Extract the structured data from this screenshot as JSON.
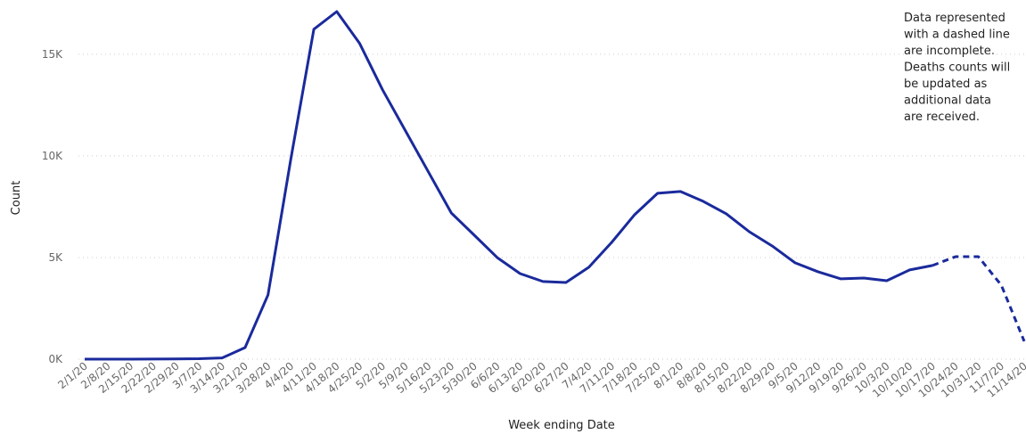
{
  "chart_data": {
    "type": "line",
    "x_label": "Week ending Date",
    "y_label": "Count",
    "annotation": [
      "Data represented",
      "with a dashed line",
      "are incomplete.",
      "Deaths counts will",
      "be updated as",
      "additional data",
      "are received."
    ],
    "categories": [
      "2/1/20",
      "2/8/20",
      "2/15/20",
      "2/22/20",
      "2/29/20",
      "3/7/20",
      "3/14/20",
      "3/21/20",
      "3/28/20",
      "4/4/20",
      "4/11/20",
      "4/18/20",
      "4/25/20",
      "5/2/20",
      "5/9/20",
      "5/16/20",
      "5/23/20",
      "5/30/20",
      "6/6/20",
      "6/13/20",
      "6/20/20",
      "6/27/20",
      "7/4/20",
      "7/11/20",
      "7/18/20",
      "7/25/20",
      "8/1/20",
      "8/8/20",
      "8/15/20",
      "8/22/20",
      "8/29/20",
      "9/5/20",
      "9/12/20",
      "9/19/20",
      "9/26/20",
      "10/3/20",
      "10/10/20",
      "10/17/20",
      "10/24/20",
      "10/31/20",
      "11/7/20",
      "11/14/20"
    ],
    "series": [
      {
        "color": "#1a2a9c",
        "dashed_from_category": "10/17/20",
        "values": [
          0,
          0,
          0,
          5,
          10,
          20,
          60,
          570,
          3160,
          9870,
          16230,
          17100,
          15530,
          13250,
          11230,
          9210,
          7190,
          6100,
          5000,
          4210,
          3820,
          3770,
          4520,
          5750,
          7110,
          8160,
          8250,
          7760,
          7150,
          6270,
          5570,
          4740,
          4300,
          3950,
          3990,
          3860,
          4390,
          4610,
          5040,
          5040,
          3640,
          880
        ]
      }
    ],
    "ylim": [
      0,
      17670
    ],
    "yticks": [
      {
        "value": 0,
        "label": "0K"
      },
      {
        "value": 5000,
        "label": "5K"
      },
      {
        "value": 10000,
        "label": "10K"
      },
      {
        "value": 15000,
        "label": "15K"
      }
    ],
    "grid": true
  }
}
